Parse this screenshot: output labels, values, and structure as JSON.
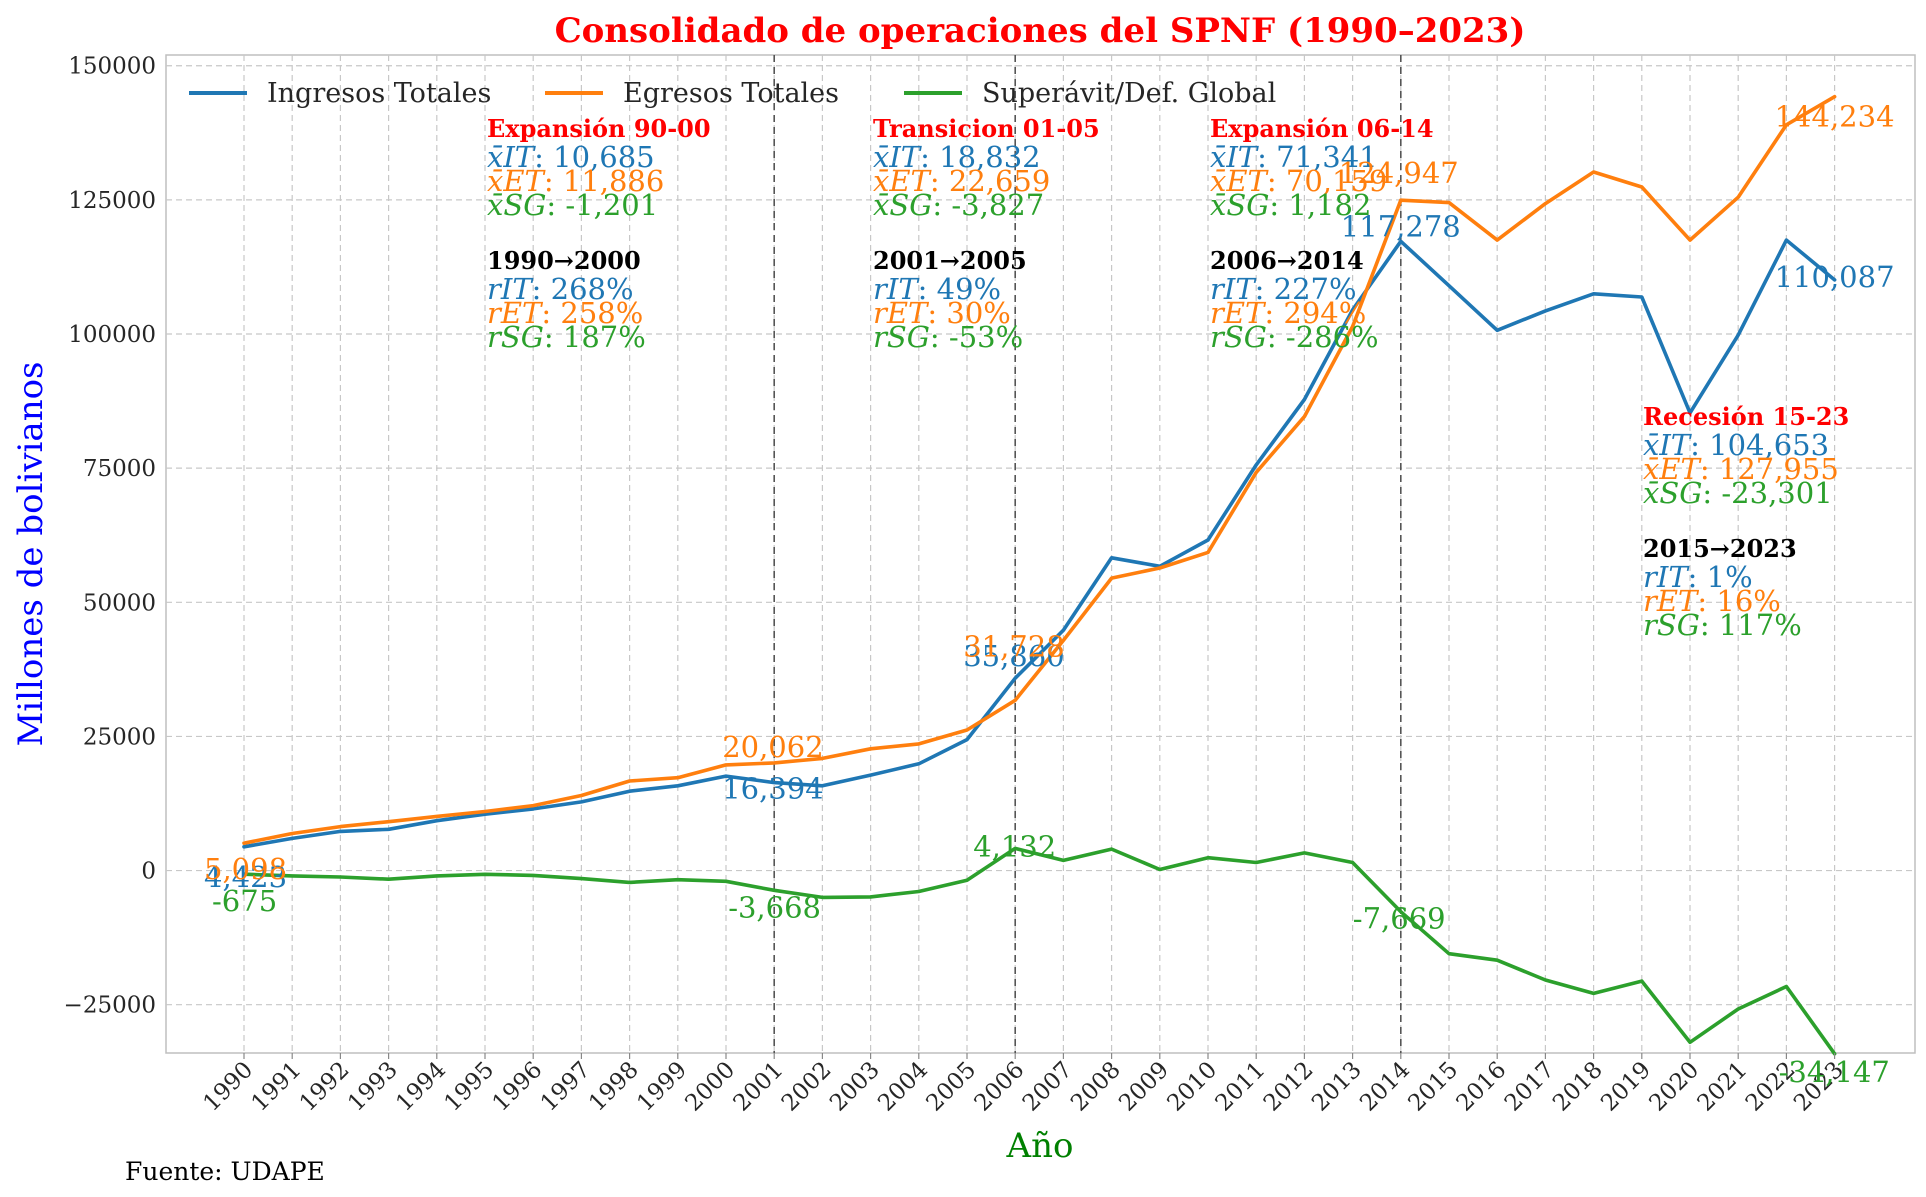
{
  "chart_data": {
    "type": "line",
    "title": "Consolidado de operaciones del SPNF (1990–2023)",
    "xlabel": "Año",
    "ylabel": "Millones de bolivianos",
    "source": "Fuente: UDAPE",
    "categories": [
      "1990",
      "1991",
      "1992",
      "1993",
      "1994",
      "1995",
      "1996",
      "1997",
      "1998",
      "1999",
      "2000",
      "2001",
      "2002",
      "2003",
      "2004",
      "2005",
      "2006",
      "2007",
      "2008",
      "2009",
      "2010",
      "2011",
      "2012",
      "2013",
      "2014",
      "2015",
      "2016",
      "2017",
      "2018",
      "2019",
      "2020",
      "2021",
      "2022",
      "2023"
    ],
    "ylim": [
      -34000,
      152000
    ],
    "yticks": [
      -25000,
      0,
      25000,
      50000,
      75000,
      100000,
      125000,
      150000
    ],
    "ytick_labels": [
      "−25000",
      "0",
      "25000",
      "50000",
      "75000",
      "100000",
      "125000",
      "150000"
    ],
    "grid": true,
    "legend_position": "top-left",
    "series": [
      {
        "name": "Ingresos Totales",
        "color": "#1f77b4",
        "values": [
          4423,
          6000,
          7300,
          7700,
          9300,
          10500,
          11500,
          12800,
          14800,
          15800,
          17600,
          16394,
          15800,
          17800,
          19900,
          24400,
          35860,
          44800,
          58300,
          56700,
          61600,
          75600,
          87800,
          104500,
          117278,
          109000,
          100700,
          104300,
          107500,
          106900,
          85300,
          99800,
          117500,
          110087
        ]
      },
      {
        "name": "Egresos Totales",
        "color": "#ff7f0e",
        "values": [
          5098,
          6900,
          8200,
          9100,
          10100,
          11000,
          12100,
          14000,
          16700,
          17300,
          19700,
          20062,
          20900,
          22700,
          23600,
          26200,
          31728,
          42900,
          54500,
          56400,
          59300,
          74200,
          84600,
          101400,
          124947,
          124500,
          117500,
          124300,
          130200,
          127400,
          117500,
          125500,
          139000,
          144234
        ]
      },
      {
        "name": "Superávit/Def. Global",
        "color": "#2ca02c",
        "values": [
          -675,
          -1000,
          -1200,
          -1600,
          -1000,
          -700,
          -900,
          -1500,
          -2200,
          -1700,
          -2000,
          -3668,
          -5000,
          -4900,
          -3900,
          -1800,
          4132,
          1900,
          4000,
          200,
          2400,
          1500,
          3300,
          1500,
          -7669,
          -15500,
          -16700,
          -20400,
          -22900,
          -20600,
          -32000,
          -25800,
          -21600,
          -34147
        ]
      }
    ],
    "point_labels": [
      {
        "series": 0,
        "index": 0,
        "text": "4,423"
      },
      {
        "series": 1,
        "index": 0,
        "text": "5,098"
      },
      {
        "series": 2,
        "index": 0,
        "text": "-675"
      },
      {
        "series": 0,
        "index": 11,
        "text": "16,394"
      },
      {
        "series": 1,
        "index": 11,
        "text": "20,062"
      },
      {
        "series": 2,
        "index": 11,
        "text": "-3,668"
      },
      {
        "series": 0,
        "index": 16,
        "text": "35,860"
      },
      {
        "series": 1,
        "index": 16,
        "text": "31,728"
      },
      {
        "series": 2,
        "index": 16,
        "text": "4,132"
      },
      {
        "series": 0,
        "index": 24,
        "text": "117,278"
      },
      {
        "series": 1,
        "index": 24,
        "text": "124,947"
      },
      {
        "series": 2,
        "index": 24,
        "text": "-7,669"
      },
      {
        "series": 0,
        "index": 33,
        "text": "110,087"
      },
      {
        "series": 1,
        "index": 33,
        "text": "144,234"
      },
      {
        "series": 2,
        "index": 33,
        "text": "-34,147"
      }
    ],
    "period_dividers": [
      "2001",
      "2006",
      "2014"
    ],
    "period_annotations": [
      {
        "title": "Expansión 90-00",
        "mean_it": "10,685",
        "mean_et": "11,886",
        "mean_sg": "-1,201",
        "range": "1990→2000",
        "r_it": "268%",
        "r_et": "258%",
        "r_sg": "187%"
      },
      {
        "title": "Transicion 01-05",
        "mean_it": "18,832",
        "mean_et": "22,659",
        "mean_sg": "-3,827",
        "range": "2001→2005",
        "r_it": "49%",
        "r_et": "30%",
        "r_sg": "-53%"
      },
      {
        "title": "Expansión 06-14",
        "mean_it": "71,341",
        "mean_et": "70,159",
        "mean_sg": "1,182",
        "range": "2006→2014",
        "r_it": "227%",
        "r_et": "294%",
        "r_sg": "-286%"
      },
      {
        "title": "Recesión 15-23",
        "mean_it": "104,653",
        "mean_et": "127,955",
        "mean_sg": "-23,301",
        "range": "2015→2023",
        "r_it": "1%",
        "r_et": "16%",
        "r_sg": "117%"
      }
    ],
    "symbols": {
      "mean_it": "x̄IT",
      "mean_et": "x̄ET",
      "mean_sg": "x̄SG",
      "r_it": "rIT",
      "r_et": "rET",
      "r_sg": "rSG"
    }
  }
}
